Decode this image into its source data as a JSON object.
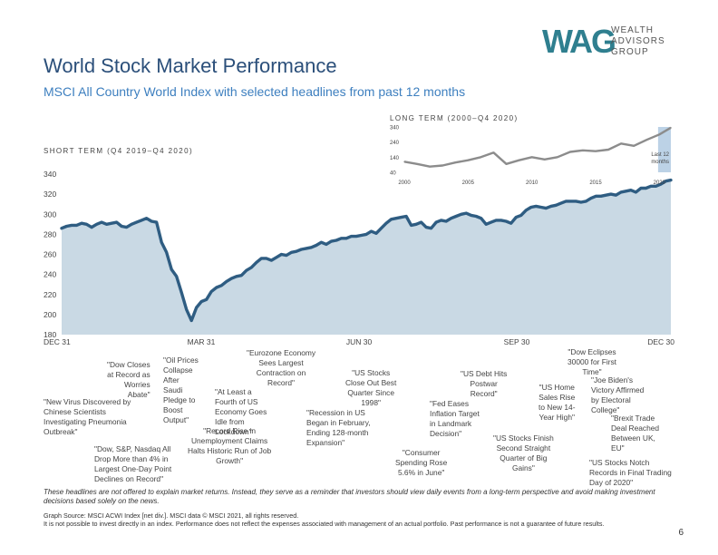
{
  "header": {
    "title": "World Stock Market Performance",
    "subtitle": "MSCI All Country World Index with selected headlines from past 12 months"
  },
  "logo": {
    "mark": "WAG",
    "line1": "WEALTH",
    "line2": "ADVISORS",
    "line3": "GROUP"
  },
  "colors": {
    "line": "#2f5d82",
    "fill": "#c9d9e4",
    "title": "#2b4f7a",
    "subtitle": "#3d7fbf",
    "inset_line": "#8c8c8c",
    "inset_highlight": "#bcd2e6"
  },
  "chart_data": [
    {
      "type": "area",
      "label": "SHORT TERM (Q4 2019–Q4 2020)",
      "ylim": [
        180,
        340
      ],
      "yticks": [
        180,
        200,
        220,
        240,
        260,
        280,
        300,
        320,
        340
      ],
      "xticks": [
        "DEC 31",
        "MAR 31",
        "JUN 30",
        "SEP 30",
        "DEC 30"
      ],
      "x": [
        0,
        3,
        6,
        9,
        12,
        15,
        18,
        21,
        24,
        27,
        30,
        33,
        36,
        39,
        42,
        45,
        48,
        51,
        54,
        57,
        60,
        63,
        66,
        69,
        72,
        75,
        78,
        81,
        84,
        87,
        90,
        93,
        96,
        99,
        102,
        105,
        108,
        111,
        114,
        117,
        120,
        123,
        126,
        129,
        132,
        135,
        138,
        141,
        144,
        147,
        150,
        153,
        156,
        159,
        162,
        165,
        168,
        171,
        174,
        177,
        180,
        183,
        186,
        189,
        192,
        195,
        198,
        201,
        204,
        207,
        210,
        213,
        216,
        219,
        222,
        225,
        228,
        231,
        234,
        237,
        240,
        243,
        246,
        249,
        252,
        255,
        258,
        261,
        264,
        267,
        270,
        273,
        276,
        279,
        282,
        285,
        288,
        291,
        294,
        297,
        300,
        303,
        306,
        309,
        312,
        315,
        318,
        321,
        324,
        327,
        330,
        333,
        336,
        339,
        342,
        345,
        348,
        351,
        354,
        357,
        360,
        363,
        366
      ],
      "values": [
        286,
        288,
        289,
        289,
        291,
        290,
        287,
        290,
        292,
        290,
        291,
        292,
        288,
        287,
        290,
        292,
        294,
        296,
        293,
        292,
        272,
        262,
        245,
        238,
        222,
        205,
        194,
        207,
        213,
        215,
        223,
        227,
        229,
        233,
        236,
        238,
        239,
        244,
        247,
        252,
        256,
        256,
        254,
        257,
        260,
        259,
        262,
        263,
        265,
        266,
        267,
        269,
        272,
        270,
        273,
        274,
        276,
        276,
        278,
        278,
        279,
        280,
        283,
        281,
        286,
        291,
        295,
        296,
        297,
        298,
        289,
        290,
        292,
        287,
        286,
        292,
        294,
        293,
        296,
        298,
        300,
        301,
        299,
        298,
        296,
        290,
        292,
        294,
        294,
        293,
        291,
        297,
        299,
        304,
        307,
        308,
        307,
        306,
        308,
        309,
        311,
        313,
        313,
        313,
        312,
        313,
        316,
        318,
        318,
        319,
        320,
        319,
        322,
        323,
        324,
        322,
        326,
        326,
        328,
        328,
        330,
        333,
        334
      ]
    },
    {
      "type": "line",
      "label": "LONG TERM (2000–Q4 2020)",
      "ylim": [
        40,
        340
      ],
      "yticks": [
        40,
        140,
        240,
        340
      ],
      "xticks": [
        "2000",
        "2005",
        "2010",
        "2015",
        "2020"
      ],
      "x": [
        2000,
        2001,
        2002,
        2003,
        2004,
        2005,
        2006,
        2007,
        2008,
        2009,
        2010,
        2011,
        2012,
        2013,
        2014,
        2015,
        2016,
        2017,
        2018,
        2019,
        2020,
        2020.9
      ],
      "values": [
        110,
        95,
        78,
        85,
        105,
        120,
        140,
        170,
        95,
        120,
        140,
        125,
        140,
        175,
        185,
        180,
        190,
        230,
        215,
        255,
        290,
        335
      ],
      "annotation": "Last 12 months",
      "highlight_x": [
        2019.9,
        2020.9
      ]
    }
  ],
  "headlines": [
    {
      "lines": [
        "\"Dow Closes",
        "at Record as",
        "Worries",
        "Abate\""
      ]
    },
    {
      "lines": [
        "\"New Virus Discovered by",
        "Chinese Scientists",
        "Investigating Pneumonia",
        "Outbreak\""
      ]
    },
    {
      "lines": [
        "\"Oil Prices",
        "Collapse",
        "After",
        "Saudi",
        "Pledge to",
        "Boost",
        "Output\""
      ]
    },
    {
      "lines": [
        "\"Dow, S&P, Nasdaq All",
        "Drop More than 4% in",
        "Largest One-Day Point",
        "Declines on Record\""
      ]
    },
    {
      "lines": [
        "\"Eurozone Economy",
        "Sees Largest",
        "Contraction on",
        "Record\""
      ]
    },
    {
      "lines": [
        "\"At Least a",
        "Fourth of US",
        "Economy Goes",
        "Idle from",
        "Lockdown\""
      ]
    },
    {
      "lines": [
        "\"Record Rise in",
        "Unemployment Claims",
        "Halts Historic Run of Job",
        "Growth\""
      ]
    },
    {
      "lines": [
        "\"US Stocks",
        "Close Out Best",
        "Quarter Since",
        "1998\""
      ]
    },
    {
      "lines": [
        "\"Recession in US",
        "Began in February,",
        "Ending 128-month",
        "Expansion\""
      ]
    },
    {
      "lines": [
        "\"US Debt Hits",
        "Postwar",
        "Record\""
      ]
    },
    {
      "lines": [
        "\"Fed Eases",
        "Inflation Target",
        "in Landmark",
        "Decision\""
      ]
    },
    {
      "lines": [
        "\"Consumer",
        "Spending Rose",
        "5.6% in June\""
      ]
    },
    {
      "lines": [
        "\"US Stocks Finish",
        "Second Straight",
        "Quarter of Big",
        "Gains\""
      ]
    },
    {
      "lines": [
        "\"US Home",
        "Sales Rise",
        "to New 14-",
        "Year High\""
      ]
    },
    {
      "lines": [
        "\"Dow Eclipses",
        "30000 for First",
        "Time\""
      ]
    },
    {
      "lines": [
        "\"Joe Biden's",
        "Victory Affirmed",
        "by Electoral",
        "College\""
      ]
    },
    {
      "lines": [
        "\"Brexit Trade",
        "Deal Reached",
        "Between UK,",
        "EU\""
      ]
    },
    {
      "lines": [
        "\"US Stocks Notch",
        "Records in Final Trading",
        "Day of 2020\""
      ]
    }
  ],
  "disclaimer": "These headlines are not offered to explain market returns. Instead, they serve as a reminder that investors should view daily events from a long-term perspective and avoid making investment decisions based solely on the news.",
  "footer": {
    "source": "Graph Source: MSCI ACWI Index [net div.]. MSCI data © MSCI 2021, all rights reserved.",
    "note": "It is not possible to invest directly in an index. Performance does not reflect the expenses associated with management of an actual portfolio. Past performance is not a guarantee of future results."
  },
  "page_number": "6"
}
